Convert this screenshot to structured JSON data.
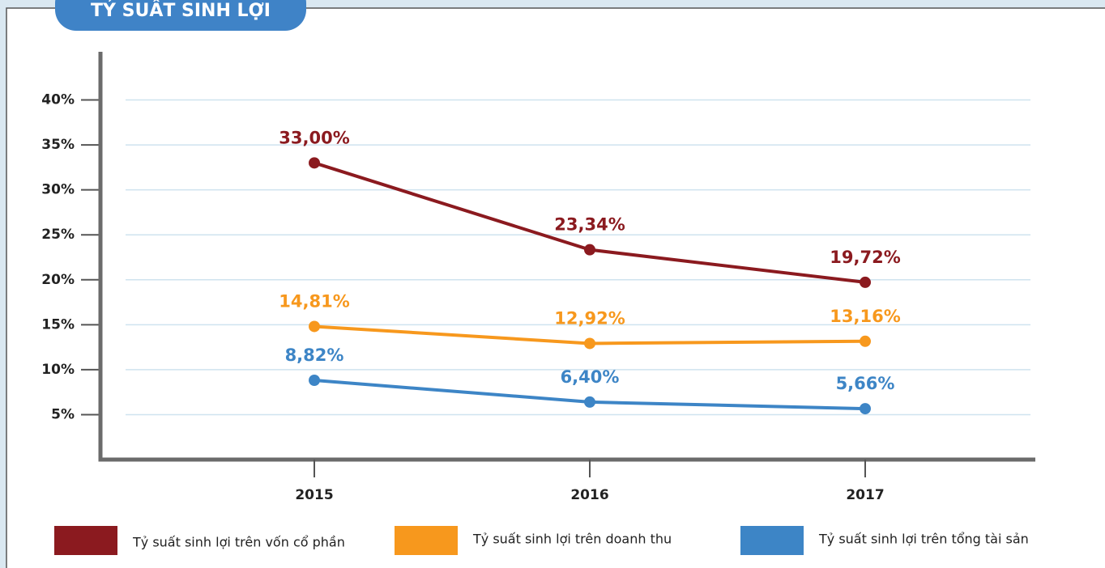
{
  "chart_data": {
    "type": "line",
    "title": "TỶ SUẤT SINH LỢI",
    "categories": [
      "2015",
      "2016",
      "2017"
    ],
    "series": [
      {
        "name": "Tỷ suất sinh lợi trên vốn cổ phần",
        "color": "#8b1a1f",
        "values": [
          33,
          23.34,
          19.72
        ],
        "value_labels": [
          "33,00%",
          "23,34%",
          "19,72%"
        ]
      },
      {
        "name": "Tỷ suất sinh lợi trên doanh thu",
        "color": "#f7981d",
        "values": [
          14.81,
          12.92,
          13.16
        ],
        "value_labels": [
          "14,81%",
          "12,92%",
          "13,16%"
        ]
      },
      {
        "name": "Tỷ suất sinh lợi trên tổng tài sản",
        "color": "#3d85c6",
        "values": [
          8.82,
          6.4,
          5.66
        ],
        "value_labels": [
          "8,82%",
          "6,40%",
          "5,66%"
        ]
      }
    ],
    "ylim": [
      0,
      45
    ],
    "yticks": [
      {
        "value": 5,
        "label": "5%"
      },
      {
        "value": 10,
        "label": "10%"
      },
      {
        "value": 15,
        "label": "15%"
      },
      {
        "value": 20,
        "label": "20%"
      },
      {
        "value": 25,
        "label": "25%"
      },
      {
        "value": 30,
        "label": "30%"
      },
      {
        "value": 35,
        "label": "35%"
      },
      {
        "value": 40,
        "label": "40%"
      }
    ],
    "grid": true
  }
}
